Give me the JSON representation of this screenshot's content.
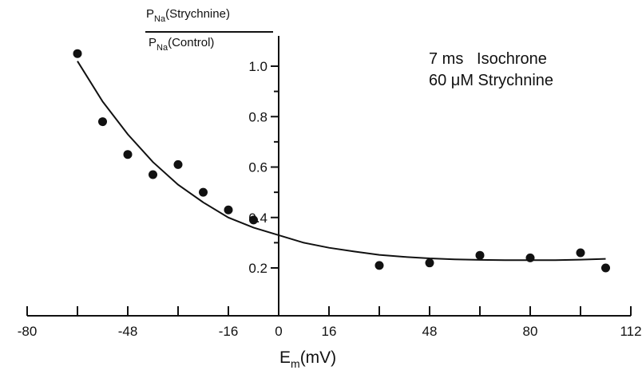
{
  "chart_data": {
    "type": "scatter",
    "title": "",
    "xlabel": {
      "main": "E",
      "sub": "m",
      "rest": "(mV)"
    },
    "ylabel": {
      "numerator": {
        "main": "P",
        "sub": "Na",
        "rest": "(Strychnine)"
      },
      "denominator": {
        "main": "P",
        "sub": "Na",
        "rest": "(Control)"
      }
    },
    "annotation": {
      "line1": "7 ms   Isochrone",
      "line2": "60 μM Strychnine"
    },
    "xlim": [
      -80,
      112
    ],
    "ylim": [
      0,
      1.1
    ],
    "x_ticks": [
      -80,
      -64,
      -48,
      -32,
      -16,
      0,
      16,
      32,
      48,
      64,
      80,
      96,
      112
    ],
    "x_tick_labels": [
      "-80",
      "",
      "-48",
      "",
      "-16",
      "0",
      "16",
      "",
      "48",
      "",
      "80",
      "",
      "112"
    ],
    "y_ticks": [
      0.2,
      0.4,
      0.6,
      0.8,
      1.0
    ],
    "y_tick_labels": [
      "0.2",
      "0.4",
      "0.6",
      "0.8",
      "1.0"
    ],
    "grid": false,
    "points": [
      {
        "x": -64,
        "y": 1.05
      },
      {
        "x": -56,
        "y": 0.78
      },
      {
        "x": -48,
        "y": 0.65
      },
      {
        "x": -40,
        "y": 0.57
      },
      {
        "x": -32,
        "y": 0.61
      },
      {
        "x": -24,
        "y": 0.5
      },
      {
        "x": -16,
        "y": 0.43
      },
      {
        "x": -8,
        "y": 0.39
      },
      {
        "x": 32,
        "y": 0.21
      },
      {
        "x": 48,
        "y": 0.22
      },
      {
        "x": 64,
        "y": 0.25
      },
      {
        "x": 80,
        "y": 0.24
      },
      {
        "x": 96,
        "y": 0.26
      },
      {
        "x": 104,
        "y": 0.2
      }
    ],
    "fit_curve": {
      "x": [
        -64,
        -56,
        -48,
        -40,
        -32,
        -24,
        -16,
        -8,
        0,
        8,
        16,
        24,
        32,
        40,
        48,
        56,
        64,
        72,
        80,
        88,
        96,
        104
      ],
      "y": [
        1.02,
        0.86,
        0.73,
        0.62,
        0.53,
        0.46,
        0.4,
        0.36,
        0.33,
        0.3,
        0.28,
        0.265,
        0.252,
        0.244,
        0.238,
        0.234,
        0.232,
        0.231,
        0.231,
        0.231,
        0.233,
        0.236
      ]
    }
  }
}
